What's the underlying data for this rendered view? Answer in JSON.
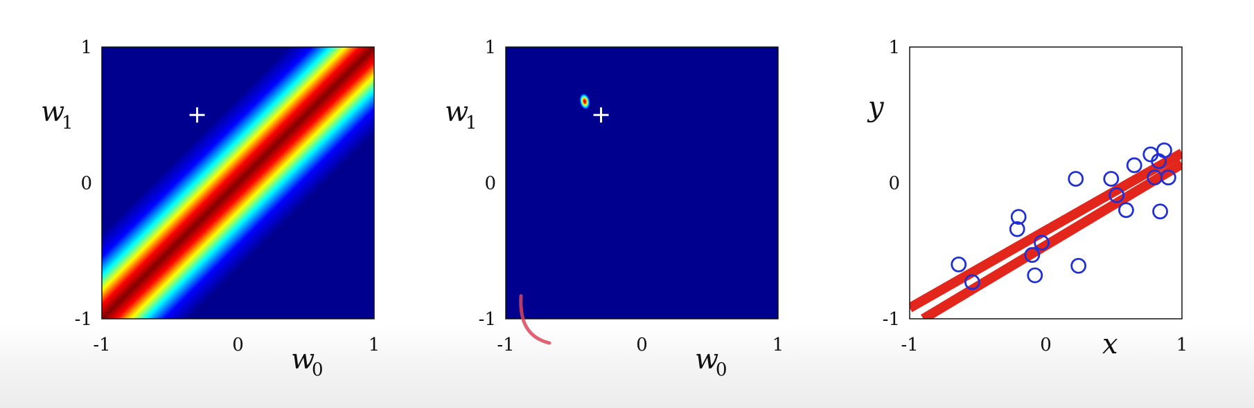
{
  "chart_data": [
    {
      "type": "heatmap",
      "title": "",
      "xlabel": {
        "base": "w",
        "sub": "0"
      },
      "ylabel": {
        "base": "w",
        "sub": "1"
      },
      "xlim": [
        -1,
        1
      ],
      "ylim": [
        -1,
        1
      ],
      "xticks": [
        "-1",
        "0",
        "1"
      ],
      "yticks": [
        "-1",
        "0",
        "1"
      ],
      "colormap": "jet",
      "grid": false,
      "density": {
        "kind": "band",
        "angle_deg": -45,
        "center": [
          0.25,
          0.25
        ],
        "width": 0.14
      },
      "marker": {
        "symbol": "+",
        "x": -0.3,
        "y": 0.5,
        "color": "#ffffff"
      }
    },
    {
      "type": "heatmap",
      "title": "",
      "xlabel": {
        "base": "w",
        "sub": "0"
      },
      "ylabel": {
        "base": "w",
        "sub": "1"
      },
      "xlim": [
        -1,
        1
      ],
      "ylim": [
        -1,
        1
      ],
      "xticks": [
        "-1",
        "0",
        "1"
      ],
      "yticks": [
        "-1",
        "0",
        "1"
      ],
      "colormap": "jet",
      "grid": false,
      "density": {
        "kind": "gaussian",
        "center": [
          -0.42,
          0.6
        ],
        "sigma": [
          0.025,
          0.04
        ]
      },
      "marker": {
        "symbol": "+",
        "x": -0.3,
        "y": 0.5,
        "color": "#ffffff"
      }
    },
    {
      "type": "scatter",
      "title": "",
      "xlabel": "x",
      "ylabel": "y",
      "xlim": [
        -1,
        1
      ],
      "ylim": [
        -1,
        1
      ],
      "xticks": [
        "-1",
        "0",
        "1"
      ],
      "yticks": [
        "-1",
        "0",
        "1"
      ],
      "grid": false,
      "points": [
        {
          "x": -0.64,
          "y": -0.6
        },
        {
          "x": -0.54,
          "y": -0.73
        },
        {
          "x": -0.2,
          "y": -0.25
        },
        {
          "x": -0.21,
          "y": -0.34
        },
        {
          "x": -0.1,
          "y": -0.53
        },
        {
          "x": -0.08,
          "y": -0.68
        },
        {
          "x": -0.03,
          "y": -0.44
        },
        {
          "x": 0.22,
          "y": 0.03
        },
        {
          "x": 0.24,
          "y": -0.61
        },
        {
          "x": 0.48,
          "y": 0.03
        },
        {
          "x": 0.52,
          "y": -0.09
        },
        {
          "x": 0.59,
          "y": -0.2
        },
        {
          "x": 0.65,
          "y": 0.13
        },
        {
          "x": 0.77,
          "y": 0.21
        },
        {
          "x": 0.8,
          "y": 0.04
        },
        {
          "x": 0.83,
          "y": 0.16
        },
        {
          "x": 0.84,
          "y": -0.21
        },
        {
          "x": 0.87,
          "y": 0.24
        },
        {
          "x": 0.9,
          "y": 0.04
        }
      ],
      "point_color": "#1f2fd6",
      "lines": [
        {
          "x": [
            -1,
            1
          ],
          "y": [
            -0.92,
            0.22
          ]
        },
        {
          "x": [
            -0.9,
            1
          ],
          "y": [
            -1.0,
            0.14
          ]
        }
      ],
      "line_color": "#e3261c"
    }
  ],
  "annotation": {
    "kind": "pen-stroke",
    "color": "#d9475d"
  }
}
